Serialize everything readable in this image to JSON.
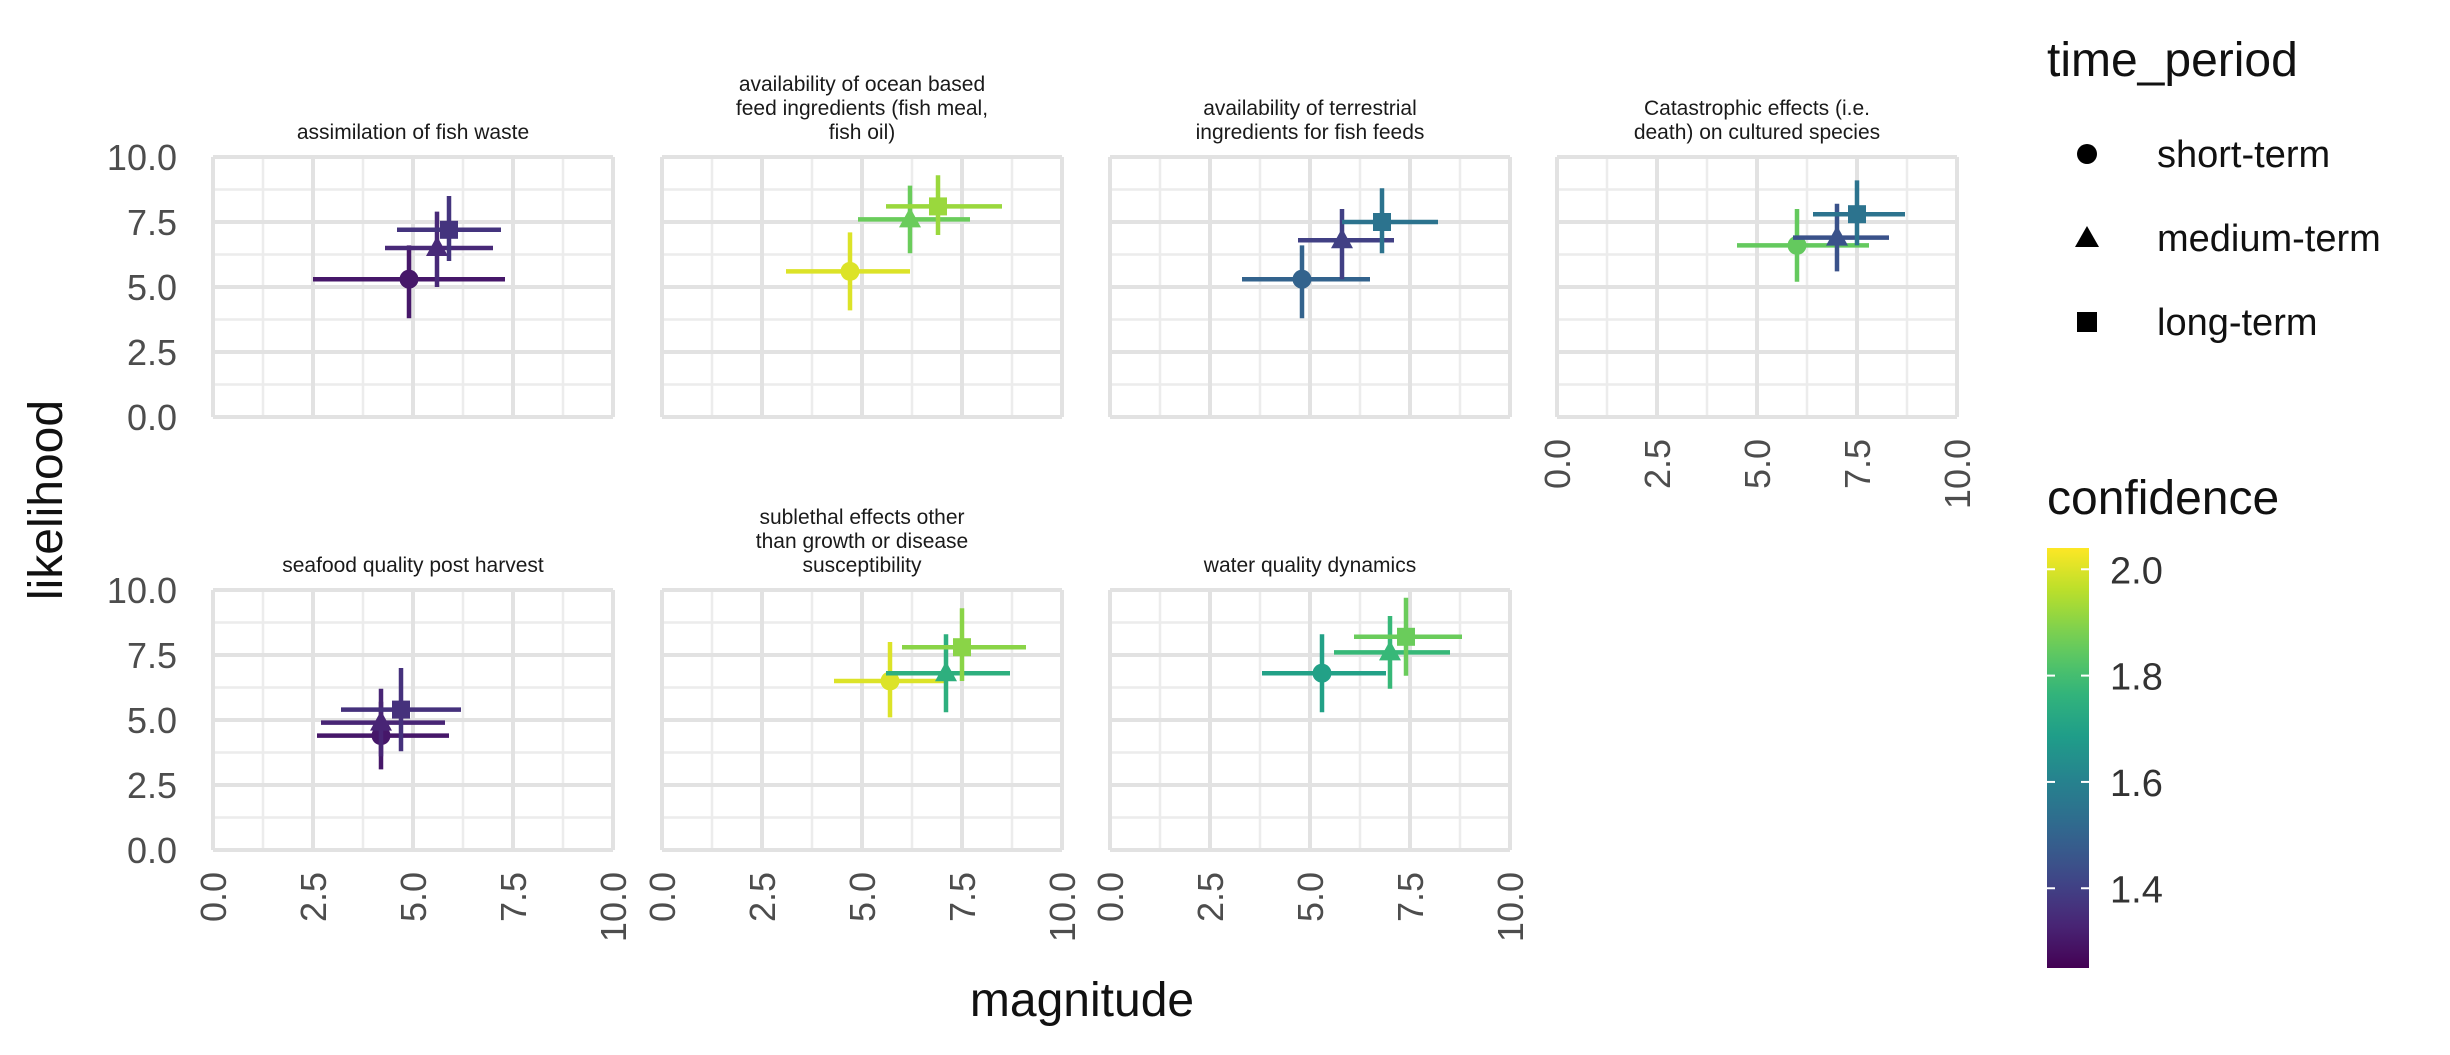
{
  "chart_data": {
    "type": "scatter",
    "xlabel": "magnitude",
    "ylabel": "likelihood",
    "xlim": [
      0,
      10
    ],
    "ylim": [
      0,
      10
    ],
    "x_ticks": [
      "0.0",
      "2.5",
      "5.0",
      "7.5",
      "10.0"
    ],
    "y_ticks": [
      "0.0",
      "2.5",
      "5.0",
      "7.5",
      "10.0"
    ],
    "grid": true,
    "legend_position": "right",
    "shape_legend": {
      "title": "time_period",
      "entries": [
        {
          "label": "short-term",
          "shape": "circle"
        },
        {
          "label": "medium-term",
          "shape": "triangle"
        },
        {
          "label": "long-term",
          "shape": "square"
        }
      ]
    },
    "color_legend": {
      "title": "confidence",
      "ticks": [
        "2.0",
        "1.8",
        "1.6",
        "1.4"
      ],
      "tick_values": [
        2.0,
        1.8,
        1.6,
        1.4
      ],
      "range": [
        1.25,
        2.04
      ],
      "colorscale": "viridis"
    },
    "panels": [
      {
        "title": [
          "assimilation of fish waste"
        ],
        "points": [
          {
            "period": "short-term",
            "x": 4.9,
            "y": 5.3,
            "xmin": 2.5,
            "xmax": 7.3,
            "ymin": 3.8,
            "ymax": 6.6,
            "confidence": 1.3
          },
          {
            "period": "medium-term",
            "x": 5.6,
            "y": 6.5,
            "xmin": 4.3,
            "xmax": 7.0,
            "ymin": 5.0,
            "ymax": 7.9,
            "confidence": 1.34
          },
          {
            "period": "long-term",
            "x": 5.9,
            "y": 7.2,
            "xmin": 4.6,
            "xmax": 7.2,
            "ymin": 6.0,
            "ymax": 8.5,
            "confidence": 1.37
          }
        ]
      },
      {
        "title": [
          "availability of ocean based",
          "feed ingredients (fish meal,",
          "fish oil)"
        ],
        "points": [
          {
            "period": "short-term",
            "x": 4.7,
            "y": 5.6,
            "xmin": 3.1,
            "xmax": 6.2,
            "ymin": 4.1,
            "ymax": 7.1,
            "confidence": 2.0
          },
          {
            "period": "medium-term",
            "x": 6.2,
            "y": 7.6,
            "xmin": 4.9,
            "xmax": 7.7,
            "ymin": 6.3,
            "ymax": 8.9,
            "confidence": 1.86
          },
          {
            "period": "long-term",
            "x": 6.9,
            "y": 8.1,
            "xmin": 5.6,
            "xmax": 8.5,
            "ymin": 7.0,
            "ymax": 9.3,
            "confidence": 1.92
          }
        ]
      },
      {
        "title": [
          "availability of terrestrial",
          "ingredients for fish feeds"
        ],
        "points": [
          {
            "period": "short-term",
            "x": 4.8,
            "y": 5.3,
            "xmin": 3.3,
            "xmax": 6.5,
            "ymin": 3.8,
            "ymax": 6.6,
            "confidence": 1.5
          },
          {
            "period": "medium-term",
            "x": 5.8,
            "y": 6.8,
            "xmin": 4.7,
            "xmax": 7.1,
            "ymin": 5.3,
            "ymax": 8.0,
            "confidence": 1.4
          },
          {
            "period": "long-term",
            "x": 6.8,
            "y": 7.5,
            "xmin": 5.8,
            "xmax": 8.2,
            "ymin": 6.3,
            "ymax": 8.8,
            "confidence": 1.55
          }
        ]
      },
      {
        "title": [
          "Catastrophic effects (i.e.",
          "death) on cultured species"
        ],
        "points": [
          {
            "period": "short-term",
            "x": 6.0,
            "y": 6.6,
            "xmin": 4.5,
            "xmax": 7.8,
            "ymin": 5.2,
            "ymax": 8.0,
            "confidence": 1.85
          },
          {
            "period": "medium-term",
            "x": 7.0,
            "y": 6.9,
            "xmin": 5.9,
            "xmax": 8.3,
            "ymin": 5.6,
            "ymax": 8.2,
            "confidence": 1.45
          },
          {
            "period": "long-term",
            "x": 7.5,
            "y": 7.8,
            "xmin": 6.4,
            "xmax": 8.7,
            "ymin": 6.6,
            "ymax": 9.1,
            "confidence": 1.55
          }
        ]
      },
      {
        "title": [
          "seafood quality post harvest"
        ],
        "points": [
          {
            "period": "short-term",
            "x": 4.2,
            "y": 4.4,
            "xmin": 2.6,
            "xmax": 5.9,
            "ymin": 3.1,
            "ymax": 5.7,
            "confidence": 1.3
          },
          {
            "period": "medium-term",
            "x": 4.2,
            "y": 4.9,
            "xmin": 2.7,
            "xmax": 5.8,
            "ymin": 3.6,
            "ymax": 6.2,
            "confidence": 1.33
          },
          {
            "period": "long-term",
            "x": 4.7,
            "y": 5.4,
            "xmin": 3.2,
            "xmax": 6.2,
            "ymin": 3.8,
            "ymax": 7.0,
            "confidence": 1.36
          }
        ]
      },
      {
        "title": [
          "sublethal effects other",
          "than growth or disease",
          "susceptibility"
        ],
        "points": [
          {
            "period": "short-term",
            "x": 5.7,
            "y": 6.5,
            "xmin": 4.3,
            "xmax": 7.1,
            "ymin": 5.1,
            "ymax": 8.0,
            "confidence": 2.0
          },
          {
            "period": "medium-term",
            "x": 7.1,
            "y": 6.8,
            "xmin": 5.6,
            "xmax": 8.7,
            "ymin": 5.3,
            "ymax": 8.3,
            "confidence": 1.75
          },
          {
            "period": "long-term",
            "x": 7.5,
            "y": 7.8,
            "xmin": 6.0,
            "xmax": 9.1,
            "ymin": 6.5,
            "ymax": 9.3,
            "confidence": 1.9
          }
        ]
      },
      {
        "title": [
          "water quality dynamics"
        ],
        "points": [
          {
            "period": "short-term",
            "x": 5.3,
            "y": 6.8,
            "xmin": 3.8,
            "xmax": 6.9,
            "ymin": 5.3,
            "ymax": 8.3,
            "confidence": 1.7
          },
          {
            "period": "medium-term",
            "x": 7.0,
            "y": 7.6,
            "xmin": 5.6,
            "xmax": 8.5,
            "ymin": 6.2,
            "ymax": 9.0,
            "confidence": 1.78
          },
          {
            "period": "long-term",
            "x": 7.4,
            "y": 8.2,
            "xmin": 6.1,
            "xmax": 8.8,
            "ymin": 6.7,
            "ymax": 9.7,
            "confidence": 1.86
          }
        ]
      }
    ]
  }
}
